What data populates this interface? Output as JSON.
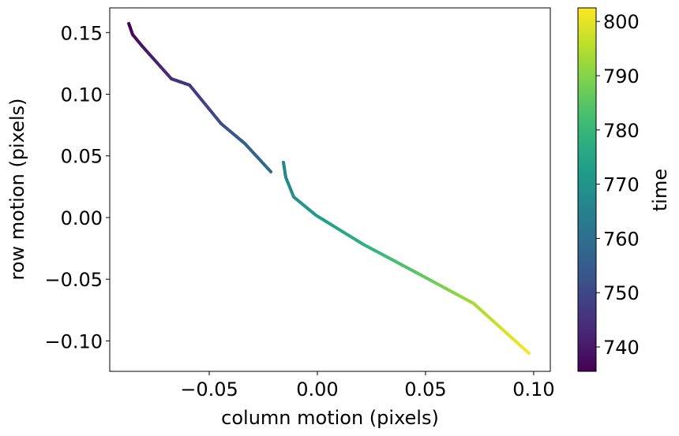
{
  "chart_data": {
    "type": "scatter",
    "xlabel": "column motion (pixels)",
    "ylabel": "row motion (pixels)",
    "xlim": [
      -0.096,
      0.1077
    ],
    "ylim": [
      -0.1247,
      0.17
    ],
    "xticks": [
      -0.05,
      0.0,
      0.05,
      0.1
    ],
    "xtick_labels": [
      "−0.05",
      "0.00",
      "0.05",
      "0.10"
    ],
    "yticks": [
      -0.1,
      -0.05,
      0.0,
      0.05,
      0.1,
      0.15
    ],
    "ytick_labels": [
      "−0.10",
      "−0.05",
      "0.00",
      "0.05",
      "0.10",
      "0.15"
    ],
    "colorbar": {
      "label": "time",
      "colormap": "viridis",
      "range": [
        735.5,
        802.5
      ],
      "ticks": [
        740,
        750,
        760,
        770,
        780,
        790,
        800
      ],
      "tick_labels": [
        "740",
        "750",
        "760",
        "770",
        "780",
        "790",
        "800"
      ]
    },
    "series": [
      {
        "points": [
          {
            "x": -0.0872,
            "y": 0.1573,
            "t": 735.5
          },
          {
            "x": -0.0854,
            "y": 0.1483,
            "t": 737
          },
          {
            "x": -0.081,
            "y": 0.139,
            "t": 739
          },
          {
            "x": -0.0675,
            "y": 0.1125,
            "t": 744
          },
          {
            "x": -0.0591,
            "y": 0.1074,
            "t": 746
          },
          {
            "x": -0.0445,
            "y": 0.0761,
            "t": 751
          },
          {
            "x": -0.0336,
            "y": 0.0601,
            "t": 755
          },
          {
            "x": -0.0215,
            "y": 0.0371,
            "t": 759
          }
        ]
      },
      {
        "points": [
          {
            "x": -0.0157,
            "y": 0.0448,
            "t": 766
          },
          {
            "x": -0.0146,
            "y": 0.0326,
            "t": 767
          },
          {
            "x": -0.0109,
            "y": 0.0166,
            "t": 769
          },
          {
            "x": -0.0007,
            "y": 0.0019,
            "t": 772
          },
          {
            "x": 0.0212,
            "y": -0.0217,
            "t": 778
          },
          {
            "x": 0.05,
            "y": -0.0486,
            "t": 786
          },
          {
            "x": 0.0723,
            "y": -0.0697,
            "t": 793
          },
          {
            "x": 0.0978,
            "y": -0.11,
            "t": 802.5
          }
        ]
      }
    ]
  }
}
